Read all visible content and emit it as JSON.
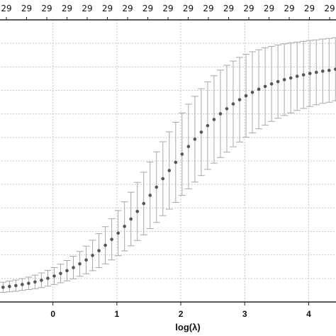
{
  "chart_data": {
    "type": "scatter",
    "title": "",
    "xlabel": "log(λ)",
    "ylabel": "",
    "xlim": [
      -0.85,
      4.45
    ],
    "ylim": [
      0.0,
      1.0
    ],
    "grid": true,
    "x_ticks": [
      0,
      1,
      2,
      3,
      4
    ],
    "x_tick_labels": [
      "0",
      "1",
      "2",
      "3",
      "4"
    ],
    "top_axis_label_value": "29",
    "top_axis_labels": [
      "29",
      "29",
      "29",
      "29",
      "29",
      "29",
      "29",
      "29",
      "29",
      "29",
      "29",
      "29",
      "29",
      "29",
      "29",
      "29",
      "29"
    ],
    "series": [
      {
        "marker": "point",
        "error_bars": true,
        "x": [
          -0.78,
          -0.68,
          -0.58,
          -0.48,
          -0.38,
          -0.28,
          -0.18,
          -0.08,
          0.02,
          0.12,
          0.22,
          0.32,
          0.42,
          0.52,
          0.62,
          0.72,
          0.82,
          0.92,
          1.02,
          1.12,
          1.22,
          1.32,
          1.42,
          1.52,
          1.62,
          1.72,
          1.82,
          1.92,
          2.02,
          2.12,
          2.22,
          2.32,
          2.42,
          2.52,
          2.62,
          2.72,
          2.82,
          2.92,
          3.02,
          3.12,
          3.22,
          3.32,
          3.42,
          3.52,
          3.62,
          3.72,
          3.82,
          3.92,
          4.02,
          4.12,
          4.22,
          4.32,
          4.42
        ],
        "y": [
          0.052,
          0.055,
          0.058,
          0.062,
          0.066,
          0.071,
          0.077,
          0.084,
          0.092,
          0.101,
          0.111,
          0.122,
          0.135,
          0.149,
          0.165,
          0.182,
          0.201,
          0.222,
          0.244,
          0.268,
          0.294,
          0.321,
          0.349,
          0.378,
          0.407,
          0.437,
          0.466,
          0.495,
          0.524,
          0.551,
          0.577,
          0.602,
          0.625,
          0.647,
          0.667,
          0.685,
          0.702,
          0.717,
          0.731,
          0.743,
          0.754,
          0.764,
          0.773,
          0.781,
          0.788,
          0.794,
          0.8,
          0.805,
          0.81,
          0.814,
          0.818,
          0.821,
          0.825
        ],
        "y_err": [
          0.018,
          0.019,
          0.02,
          0.021,
          0.022,
          0.024,
          0.026,
          0.028,
          0.03,
          0.033,
          0.036,
          0.04,
          0.044,
          0.049,
          0.054,
          0.06,
          0.066,
          0.073,
          0.08,
          0.087,
          0.095,
          0.103,
          0.111,
          0.118,
          0.125,
          0.131,
          0.137,
          0.142,
          0.146,
          0.15,
          0.152,
          0.154,
          0.155,
          0.155,
          0.155,
          0.154,
          0.152,
          0.15,
          0.147,
          0.144,
          0.14,
          0.137,
          0.133,
          0.13,
          0.127,
          0.124,
          0.121,
          0.119,
          0.117,
          0.115,
          0.114,
          0.113,
          0.112
        ]
      }
    ],
    "colors": {
      "point": "#555555",
      "error_bar": "#a8a8a8",
      "grid": "#c8c8c8",
      "frame": "#222222"
    }
  }
}
